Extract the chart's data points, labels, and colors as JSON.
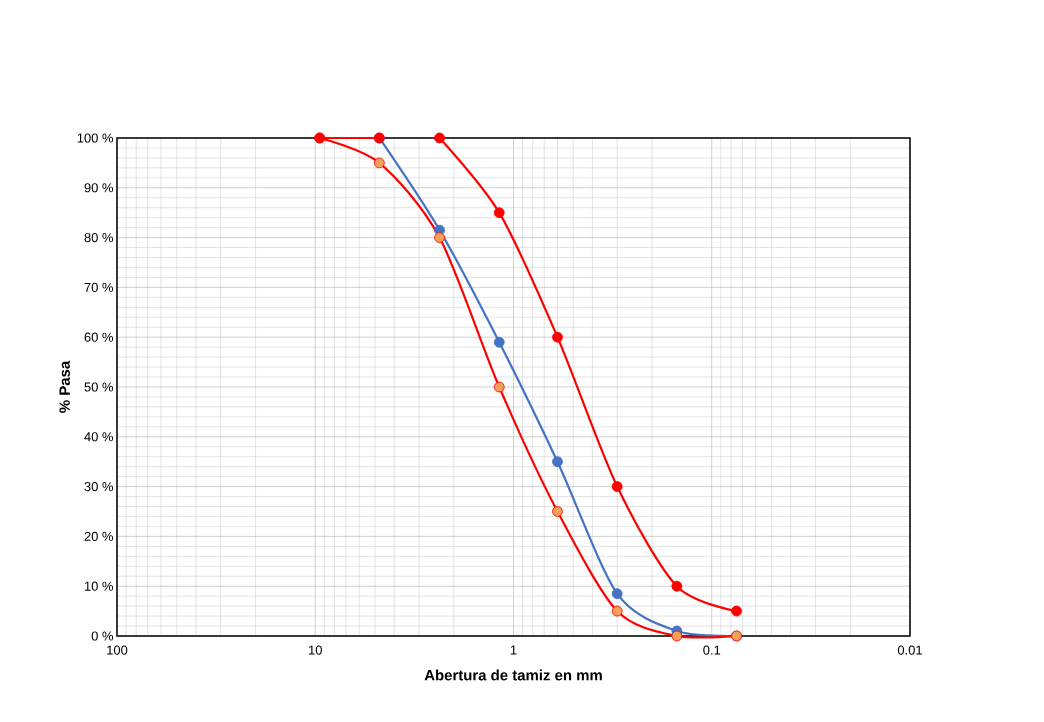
{
  "chart_data": {
    "type": "line",
    "xlabel": "Abertura de tamiz en mm",
    "ylabel": "% Pasa",
    "log": "x",
    "xlim": [
      100,
      0.01
    ],
    "xticks": [
      100,
      10,
      1,
      0.1,
      0.01
    ],
    "ylim": [
      0,
      100
    ],
    "yticks": [
      {
        "value": 0,
        "label": "0 %"
      },
      {
        "value": 10,
        "label": "10 %"
      },
      {
        "value": 20,
        "label": "20 %"
      },
      {
        "value": 30,
        "label": "30 %"
      },
      {
        "value": 40,
        "label": "40 %"
      },
      {
        "value": 50,
        "label": "50 %"
      },
      {
        "value": 60,
        "label": "60 %"
      },
      {
        "value": 70,
        "label": "70 %"
      },
      {
        "value": 80,
        "label": "80 %"
      },
      {
        "value": 90,
        "label": "90 %"
      },
      {
        "value": 100,
        "label": "100 %"
      }
    ],
    "grid": true,
    "marker": "circle",
    "series": [
      {
        "color": "#4472c4",
        "x": [
          4.75,
          2.36,
          1.18,
          0.6,
          0.3,
          0.15,
          0.075
        ],
        "values": [
          100,
          81.5,
          59,
          35,
          8.5,
          1,
          0
        ]
      },
      {
        "color": "#ff0000",
        "x": [
          2.36,
          1.18,
          0.6,
          0.3,
          0.15,
          0.075
        ],
        "values": [
          100,
          85,
          60,
          30,
          10,
          5
        ]
      },
      {
        "color": "#ff0000",
        "colors": [
          "#f4a05a",
          "#f4a05a",
          "#f4a05a",
          "#f4a05a",
          "#f4a05a",
          "#f4a05a",
          "#f4a05a",
          "#f4a05a"
        ],
        "x": [
          9.5,
          4.75,
          2.36,
          1.18,
          0.6,
          0.3,
          0.15,
          0.075
        ],
        "values": [
          100,
          95,
          80,
          50,
          25,
          5,
          0,
          0
        ]
      },
      {
        "color": "#ff0000",
        "x": [
          9.5,
          4.75
        ],
        "values": [
          100,
          100
        ]
      }
    ]
  }
}
